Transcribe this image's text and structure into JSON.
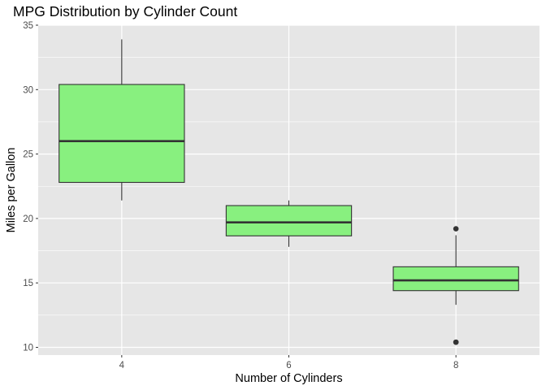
{
  "chart_data": {
    "type": "boxplot",
    "title": "MPG Distribution by Cylinder Count",
    "xlabel": "Number of Cylinders",
    "ylabel": "Miles per Gallon",
    "categories": [
      "4",
      "6",
      "8"
    ],
    "ylim": [
      9.4,
      35.0
    ],
    "yticks": [
      10,
      15,
      20,
      25,
      30,
      35
    ],
    "grid": true,
    "legend": "none",
    "box_fill": "#88F07F",
    "box_stroke": "#333333",
    "panel_background": "#E6E6E6",
    "grid_color": "#FFFFFF",
    "boxes": [
      {
        "category": "4",
        "whisker_low": 21.4,
        "q1": 22.8,
        "median": 26.0,
        "q3": 30.4,
        "whisker_high": 33.9,
        "outliers": []
      },
      {
        "category": "6",
        "whisker_low": 17.8,
        "q1": 18.65,
        "median": 19.7,
        "q3": 21.0,
        "whisker_high": 21.4,
        "outliers": []
      },
      {
        "category": "8",
        "whisker_low": 13.3,
        "q1": 14.4,
        "median": 15.2,
        "q3": 16.25,
        "whisker_high": 18.7,
        "outliers": [
          10.4,
          10.4,
          19.2
        ]
      }
    ]
  }
}
